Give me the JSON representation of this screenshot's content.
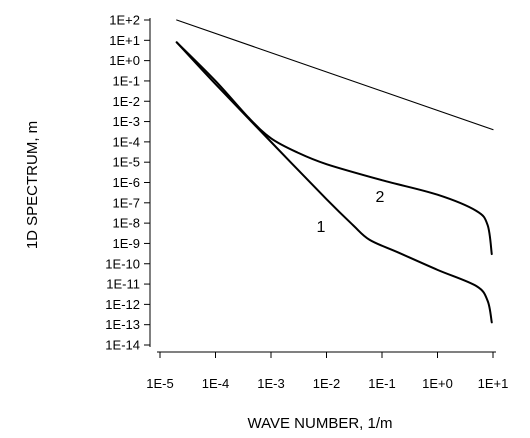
{
  "chart_data": {
    "type": "line",
    "title": "",
    "xlabel": "WAVE NUMBER, 1/m",
    "ylabel": "1D SPECTRUM, m",
    "x_scale": "log",
    "y_scale": "log",
    "xlim": [
      1e-05,
      10
    ],
    "ylim": [
      1e-14,
      100
    ],
    "grid": false,
    "x_ticks": [
      "1E-5",
      "1E-4",
      "1E-3",
      "1E-2",
      "1E-1",
      "1E+0",
      "1E+1"
    ],
    "y_ticks": [
      "1E+2",
      "1E+1",
      "1E+0",
      "1E-1",
      "1E-2",
      "1E-3",
      "1E-4",
      "1E-5",
      "1E-6",
      "1E-7",
      "1E-8",
      "1E-9",
      "1E-10",
      "1E-11",
      "1E-12",
      "1E-13",
      "1E-14"
    ],
    "series": [
      {
        "label": "",
        "stroke": "thin",
        "points": [
          [
            2e-05,
            100
          ],
          [
            10,
            0.0004
          ]
        ]
      },
      {
        "label": "2",
        "stroke": "thick",
        "points": [
          [
            2e-05,
            8
          ],
          [
            0.0001,
            0.1
          ],
          [
            0.0004,
            0.0015
          ],
          [
            0.001,
            0.00015
          ],
          [
            0.003,
            3e-05
          ],
          [
            0.01,
            8e-06
          ],
          [
            0.1,
            1.3e-06
          ],
          [
            1,
            2.5e-07
          ],
          [
            5,
            4e-08
          ],
          [
            8,
            8e-09
          ],
          [
            9.5,
            3e-10
          ]
        ]
      },
      {
        "label": "1",
        "stroke": "thick",
        "points": [
          [
            2e-05,
            8
          ],
          [
            0.0001,
            0.07
          ],
          [
            0.001,
            0.0001
          ],
          [
            0.01,
            1.5e-07
          ],
          [
            0.03,
            8e-09
          ],
          [
            0.06,
            1.5e-09
          ],
          [
            0.2,
            3.5e-10
          ],
          [
            1,
            5e-11
          ],
          [
            5,
            8e-12
          ],
          [
            8,
            1.5e-12
          ],
          [
            9.5,
            1.3e-13
          ]
        ]
      }
    ]
  }
}
